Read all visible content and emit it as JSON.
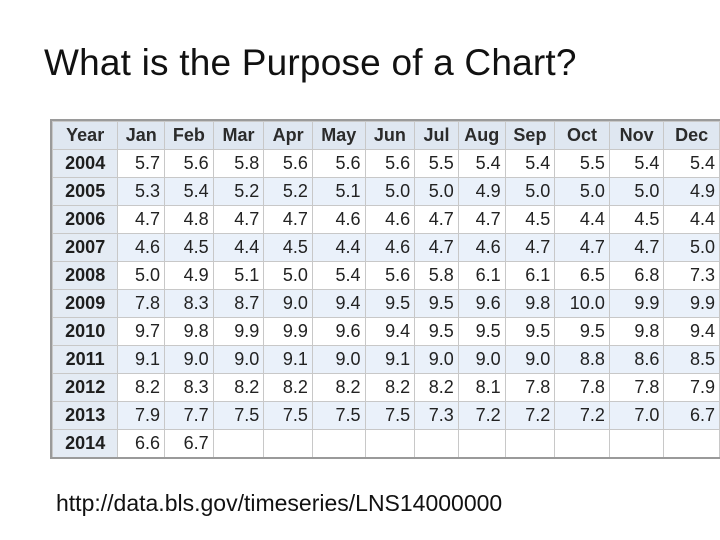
{
  "title": "What is the Purpose of a Chart?",
  "source_url": "http://data.bls.gov/timeseries/LNS14000000",
  "table": {
    "headers": [
      "Year",
      "Jan",
      "Feb",
      "Mar",
      "Apr",
      "May",
      "Jun",
      "Jul",
      "Aug",
      "Sep",
      "Oct",
      "Nov",
      "Dec"
    ],
    "rows": [
      {
        "year": "2004",
        "values": [
          "5.7",
          "5.6",
          "5.8",
          "5.6",
          "5.6",
          "5.6",
          "5.5",
          "5.4",
          "5.4",
          "5.5",
          "5.4",
          "5.4"
        ]
      },
      {
        "year": "2005",
        "values": [
          "5.3",
          "5.4",
          "5.2",
          "5.2",
          "5.1",
          "5.0",
          "5.0",
          "4.9",
          "5.0",
          "5.0",
          "5.0",
          "4.9"
        ]
      },
      {
        "year": "2006",
        "values": [
          "4.7",
          "4.8",
          "4.7",
          "4.7",
          "4.6",
          "4.6",
          "4.7",
          "4.7",
          "4.5",
          "4.4",
          "4.5",
          "4.4"
        ]
      },
      {
        "year": "2007",
        "values": [
          "4.6",
          "4.5",
          "4.4",
          "4.5",
          "4.4",
          "4.6",
          "4.7",
          "4.6",
          "4.7",
          "4.7",
          "4.7",
          "5.0"
        ]
      },
      {
        "year": "2008",
        "values": [
          "5.0",
          "4.9",
          "5.1",
          "5.0",
          "5.4",
          "5.6",
          "5.8",
          "6.1",
          "6.1",
          "6.5",
          "6.8",
          "7.3"
        ]
      },
      {
        "year": "2009",
        "values": [
          "7.8",
          "8.3",
          "8.7",
          "9.0",
          "9.4",
          "9.5",
          "9.5",
          "9.6",
          "9.8",
          "10.0",
          "9.9",
          "9.9"
        ]
      },
      {
        "year": "2010",
        "values": [
          "9.7",
          "9.8",
          "9.9",
          "9.9",
          "9.6",
          "9.4",
          "9.5",
          "9.5",
          "9.5",
          "9.5",
          "9.8",
          "9.4"
        ]
      },
      {
        "year": "2011",
        "values": [
          "9.1",
          "9.0",
          "9.0",
          "9.1",
          "9.0",
          "9.1",
          "9.0",
          "9.0",
          "9.0",
          "8.8",
          "8.6",
          "8.5"
        ]
      },
      {
        "year": "2012",
        "values": [
          "8.2",
          "8.3",
          "8.2",
          "8.2",
          "8.2",
          "8.2",
          "8.2",
          "8.1",
          "7.8",
          "7.8",
          "7.8",
          "7.9"
        ]
      },
      {
        "year": "2013",
        "values": [
          "7.9",
          "7.7",
          "7.5",
          "7.5",
          "7.5",
          "7.5",
          "7.3",
          "7.2",
          "7.2",
          "7.2",
          "7.0",
          "6.7"
        ]
      },
      {
        "year": "2014",
        "values": [
          "6.6",
          "6.7",
          "",
          "",
          "",
          "",
          "",
          "",
          "",
          "",
          "",
          ""
        ]
      }
    ]
  },
  "colors": {
    "header_bg": "#dfe7f1",
    "row_blue": "#eaf1fa",
    "row_white": "#ffffff",
    "grid": "#c8c8c8"
  }
}
